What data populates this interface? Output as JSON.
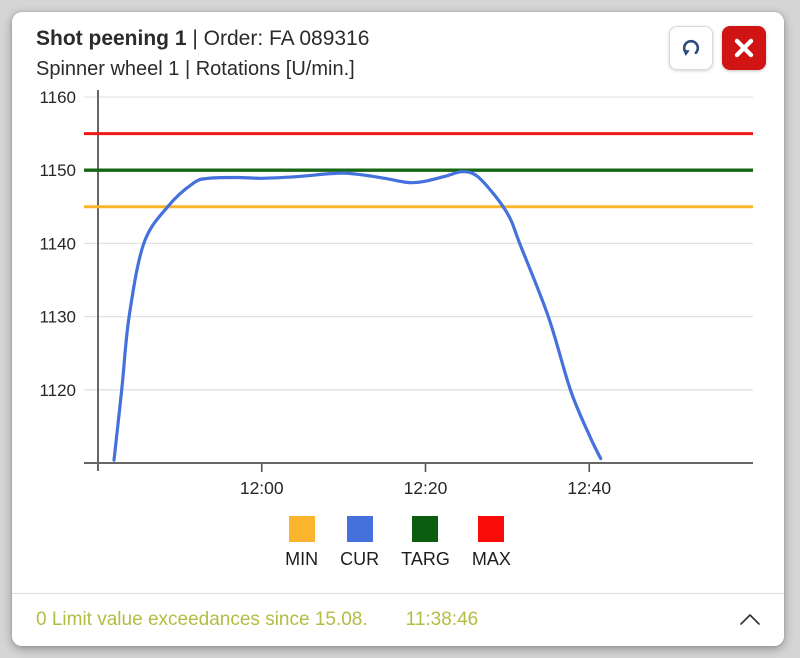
{
  "page": {
    "background": "#d5d5d5",
    "card_background": "#ffffff"
  },
  "header": {
    "title_bold": "Shot peening 1",
    "title_rest": " | Order: FA 089316",
    "subtitle": "Spinner wheel 1 | Rotations [U/min.]"
  },
  "toolbar": {
    "undo_button": {
      "icon": "undo-arrow-icon",
      "color": "#2e4d7b"
    },
    "close_button": {
      "icon": "close-x-icon",
      "color": "#d01414"
    }
  },
  "chart_data": {
    "type": "line",
    "title": "Spinner wheel 1 | Rotations [U/min.]",
    "ylabel": "Rotations [U/min.]",
    "grid": true,
    "legend_position": "bottom",
    "y_axis": {
      "min": 1110,
      "max": 1160,
      "tick_step": 10,
      "tick_values": [
        1160,
        1150,
        1140,
        1130,
        1120
      ],
      "tick_labels": [
        "1160",
        "1150",
        "1140",
        "1130",
        "1120"
      ]
    },
    "x_axis": {
      "unit": "minutes after 11:40",
      "range_minutes": [
        0,
        80
      ],
      "tick_minutes": [
        20,
        40,
        60
      ],
      "tick_labels": [
        "12:00",
        "12:20",
        "12:40"
      ]
    },
    "reference_lines": [
      {
        "label": "MIN",
        "value": 1145,
        "color": "#FBB42E"
      },
      {
        "label": "TARG",
        "value": 1150,
        "color": "#156715"
      },
      {
        "label": "MAX",
        "value": 1155,
        "color": "#EE1A16"
      }
    ],
    "series": [
      {
        "name": "CUR",
        "color": "#4471DB",
        "points": [
          [
            1.95,
            1110.4
          ],
          [
            2.9,
            1120
          ],
          [
            3.8,
            1130
          ],
          [
            5.6,
            1140
          ],
          [
            8.5,
            1145
          ],
          [
            11.6,
            1148.2
          ],
          [
            13.5,
            1148.9
          ],
          [
            17,
            1149.0
          ],
          [
            20,
            1148.9
          ],
          [
            24,
            1149.1
          ],
          [
            28,
            1149.5
          ],
          [
            30,
            1149.6
          ],
          [
            32,
            1149.4
          ],
          [
            35,
            1148.9
          ],
          [
            38,
            1148.3
          ],
          [
            40,
            1148.5
          ],
          [
            42.5,
            1149.2
          ],
          [
            44.5,
            1149.8
          ],
          [
            46.3,
            1149.2
          ],
          [
            48.5,
            1146.5
          ],
          [
            50.3,
            1143.5
          ],
          [
            51.5,
            1140
          ],
          [
            55,
            1130
          ],
          [
            57.7,
            1120
          ],
          [
            60,
            1113.8
          ],
          [
            61.4,
            1110.6
          ]
        ]
      }
    ]
  },
  "legend": {
    "items": [
      {
        "label": "MIN",
        "color": "#FBB42E"
      },
      {
        "label": "CUR",
        "color": "#4471DB"
      },
      {
        "label": "TARG",
        "color": "#0B5E10"
      },
      {
        "label": "MAX",
        "color": "#F90B07"
      }
    ]
  },
  "status_bar": {
    "message": "0 Limit value exceedances since 15.08.",
    "time": "11:38:46",
    "text_color": "#b3bc43",
    "chevron_icon": "chevron-up"
  }
}
